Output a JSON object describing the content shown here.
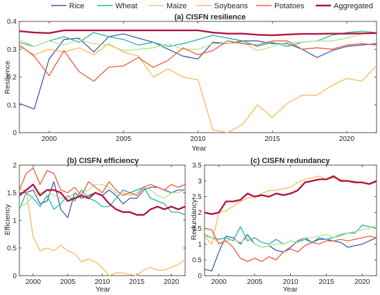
{
  "legend": {
    "items": [
      {
        "name": "Rice",
        "color": "#3b5ba9"
      },
      {
        "name": "Wheat",
        "color": "#21b3a4"
      },
      {
        "name": "Maize",
        "color": "#b8e08a"
      },
      {
        "name": "Soybeans",
        "color": "#fcb75a"
      },
      {
        "name": "Potatoes",
        "color": "#f0583d"
      },
      {
        "name": "Aggregated",
        "color": "#b01642"
      }
    ]
  },
  "chart_data": [
    {
      "type": "line",
      "title": "(a) CISFN resilience",
      "xlabel": "Year",
      "ylabel": "Resilience",
      "xlim": [
        1998,
        2022
      ],
      "ylim": [
        0,
        0.4
      ],
      "xticks": [
        2000,
        2005,
        2010,
        2015,
        2020
      ],
      "yticks": [
        0,
        0.1,
        0.2,
        0.3,
        0.4
      ],
      "x": [
        1998,
        1999,
        2000,
        2001,
        2002,
        2003,
        2004,
        2005,
        2006,
        2007,
        2008,
        2009,
        2010,
        2011,
        2012,
        2013,
        2014,
        2015,
        2016,
        2017,
        2018,
        2019,
        2020,
        2021,
        2022
      ],
      "series": [
        {
          "name": "Rice",
          "values": [
            0.105,
            0.085,
            0.265,
            0.335,
            0.34,
            0.29,
            0.345,
            0.355,
            0.34,
            0.325,
            0.3,
            0.275,
            0.265,
            0.325,
            0.32,
            0.33,
            0.33,
            0.32,
            0.32,
            0.3,
            0.27,
            0.295,
            0.31,
            0.315,
            0.32
          ]
        },
        {
          "name": "Wheat",
          "values": [
            0.325,
            0.31,
            0.33,
            0.345,
            0.325,
            0.36,
            0.345,
            0.335,
            0.315,
            0.325,
            0.31,
            0.32,
            0.335,
            0.35,
            0.34,
            0.33,
            0.31,
            0.325,
            0.31,
            0.325,
            0.33,
            0.35,
            0.36,
            0.365,
            0.36
          ]
        },
        {
          "name": "Maize",
          "values": [
            0.335,
            0.31,
            0.33,
            0.315,
            0.335,
            0.32,
            0.315,
            0.295,
            0.3,
            0.305,
            0.32,
            0.3,
            0.3,
            0.32,
            0.32,
            0.325,
            0.295,
            0.31,
            0.325,
            0.325,
            0.33,
            0.33,
            0.34,
            0.355,
            0.36
          ]
        },
        {
          "name": "Soybeans",
          "values": [
            0.31,
            0.28,
            0.3,
            0.29,
            0.305,
            0.28,
            0.32,
            0.29,
            0.275,
            0.2,
            0.23,
            0.2,
            0.19,
            0.01,
            0.0,
            0.03,
            0.1,
            0.055,
            0.105,
            0.135,
            0.135,
            0.17,
            0.195,
            0.185,
            0.24
          ]
        },
        {
          "name": "Potatoes",
          "values": [
            0.315,
            0.275,
            0.205,
            0.295,
            0.22,
            0.185,
            0.235,
            0.24,
            0.27,
            0.235,
            0.26,
            0.305,
            0.28,
            0.295,
            0.33,
            0.32,
            0.315,
            0.33,
            0.33,
            0.3,
            0.305,
            0.3,
            0.315,
            0.32,
            0.315
          ]
        },
        {
          "name": "Aggregated",
          "values": [
            0.365,
            0.36,
            0.358,
            0.368,
            0.368,
            0.368,
            0.368,
            0.368,
            0.368,
            0.368,
            0.368,
            0.368,
            0.368,
            0.36,
            0.356,
            0.356,
            0.352,
            0.35,
            0.353,
            0.355,
            0.355,
            0.356,
            0.356,
            0.357,
            0.358
          ]
        }
      ]
    },
    {
      "type": "line",
      "title": "(b) CISFN efficiency",
      "xlabel": "Year",
      "ylabel": "Efficiency",
      "xlim": [
        1998,
        2022
      ],
      "ylim": [
        0,
        2
      ],
      "xticks": [
        2000,
        2005,
        2010,
        2015,
        2020
      ],
      "yticks": [
        0,
        0.5,
        1,
        1.5,
        2
      ],
      "x": [
        1998,
        1999,
        2000,
        2001,
        2002,
        2003,
        2004,
        2005,
        2006,
        2007,
        2008,
        2009,
        2010,
        2011,
        2012,
        2013,
        2014,
        2015,
        2016,
        2017,
        2018,
        2019,
        2020,
        2021,
        2022
      ],
      "series": [
        {
          "name": "Rice",
          "values": [
            1.5,
            1.5,
            1.55,
            1.3,
            1.35,
            1.7,
            1.2,
            1.05,
            1.5,
            1.4,
            1.45,
            1.5,
            1.45,
            1.55,
            1.45,
            1.3,
            1.4,
            1.4,
            1.55,
            1.6,
            1.6,
            1.55,
            1.5,
            1.55,
            1.55
          ]
        },
        {
          "name": "Wheat",
          "values": [
            1.2,
            1.5,
            1.4,
            1.25,
            1.45,
            1.2,
            1.3,
            1.45,
            1.35,
            1.55,
            1.4,
            1.35,
            1.25,
            1.25,
            1.4,
            1.55,
            1.5,
            1.55,
            1.6,
            1.4,
            1.35,
            1.3,
            1.15,
            1.15,
            1.1
          ]
        },
        {
          "name": "Maize",
          "values": [
            1.25,
            1.3,
            1.45,
            1.5,
            1.55,
            1.45,
            1.4,
            1.4,
            1.5,
            1.5,
            1.55,
            1.65,
            1.65,
            1.6,
            1.5,
            1.5,
            1.45,
            1.5,
            1.6,
            1.55,
            1.45,
            1.4,
            1.5,
            1.5,
            1.55
          ]
        },
        {
          "name": "Soybeans",
          "values": [
            1.55,
            1.55,
            0.7,
            0.45,
            0.5,
            0.45,
            0.55,
            0.45,
            0.4,
            0.25,
            0.3,
            0.25,
            0.15,
            0.0,
            0.05,
            0.05,
            0.02,
            0.0,
            0.1,
            0.15,
            0.1,
            0.1,
            0.15,
            0.2,
            0.3
          ]
        },
        {
          "name": "Potatoes",
          "values": [
            1.55,
            1.85,
            1.95,
            1.65,
            1.9,
            1.85,
            1.55,
            1.5,
            1.6,
            1.45,
            1.7,
            1.6,
            1.5,
            1.7,
            1.55,
            1.45,
            1.5,
            1.45,
            1.6,
            1.65,
            1.6,
            1.55,
            1.65,
            1.6,
            1.65
          ]
        },
        {
          "name": "Aggregated",
          "values": [
            1.45,
            1.55,
            1.65,
            1.45,
            1.55,
            1.55,
            1.5,
            1.35,
            1.4,
            1.45,
            1.4,
            1.5,
            1.45,
            1.3,
            1.2,
            1.15,
            1.15,
            1.1,
            1.1,
            1.2,
            1.25,
            1.2,
            1.25,
            1.2,
            1.25
          ]
        }
      ]
    },
    {
      "type": "line",
      "title": "(c) CISFN redundancy",
      "xlabel": "Year",
      "ylabel": "Redundancy",
      "xlim": [
        1998,
        2022
      ],
      "ylim": [
        0,
        3.5
      ],
      "xticks": [
        2000,
        2005,
        2010,
        2015,
        2020
      ],
      "yticks": [
        0,
        0.5,
        1,
        1.5,
        2,
        2.5,
        3,
        3.5
      ],
      "x": [
        1998,
        1999,
        2000,
        2001,
        2002,
        2003,
        2004,
        2005,
        2006,
        2007,
        2008,
        2009,
        2010,
        2011,
        2012,
        2013,
        2014,
        2015,
        2016,
        2017,
        2018,
        2019,
        2020,
        2021,
        2022
      ],
      "series": [
        {
          "name": "Rice",
          "values": [
            0.2,
            0.15,
            0.75,
            1.25,
            1.2,
            1.0,
            1.3,
            1.0,
            0.9,
            0.95,
            0.8,
            0.75,
            0.9,
            1.1,
            1.2,
            1.05,
            1.15,
            1.15,
            1.1,
            1.05,
            0.9,
            0.95,
            1.0,
            1.1,
            1.2
          ]
        },
        {
          "name": "Wheat",
          "values": [
            1.3,
            1.2,
            1.15,
            1.2,
            1.1,
            1.55,
            1.1,
            1.2,
            1.05,
            1.0,
            1.15,
            1.0,
            1.1,
            1.05,
            1.15,
            1.05,
            1.2,
            1.15,
            1.2,
            1.3,
            1.35,
            1.35,
            1.6,
            1.55,
            1.5
          ]
        },
        {
          "name": "Maize",
          "values": [
            1.25,
            1.2,
            1.05,
            1.1,
            1.15,
            1.05,
            1.2,
            1.0,
            0.9,
            0.95,
            1.0,
            1.0,
            1.1,
            1.05,
            1.2,
            1.2,
            1.25,
            1.3,
            1.2,
            1.25,
            1.35,
            1.4,
            1.45,
            1.5,
            1.6
          ]
        },
        {
          "name": "Soybeans",
          "values": [
            1.25,
            1.0,
            2.0,
            2.05,
            2.2,
            2.35,
            2.45,
            2.5,
            2.6,
            2.7,
            2.7,
            2.75,
            2.8,
            2.95,
            3.05,
            3.1,
            3.15,
            3.05,
            3.1,
            3.05,
            3.0,
            3.0,
            2.95,
            2.9,
            2.95
          ]
        },
        {
          "name": "Potatoes",
          "values": [
            1.5,
            1.45,
            1.0,
            1.1,
            0.9,
            0.55,
            0.45,
            0.55,
            0.45,
            0.6,
            0.5,
            0.75,
            0.85,
            0.75,
            0.95,
            1.05,
            1.0,
            1.1,
            1.1,
            1.15,
            1.1,
            1.15,
            1.2,
            1.25,
            1.2
          ]
        },
        {
          "name": "Aggregated",
          "values": [
            2.0,
            1.95,
            2.0,
            2.35,
            2.35,
            2.4,
            2.6,
            2.5,
            2.55,
            2.5,
            2.6,
            2.55,
            2.6,
            2.7,
            2.95,
            3.0,
            3.05,
            3.05,
            3.15,
            3.0,
            3.0,
            2.95,
            2.95,
            2.9,
            3.0
          ]
        }
      ]
    }
  ]
}
